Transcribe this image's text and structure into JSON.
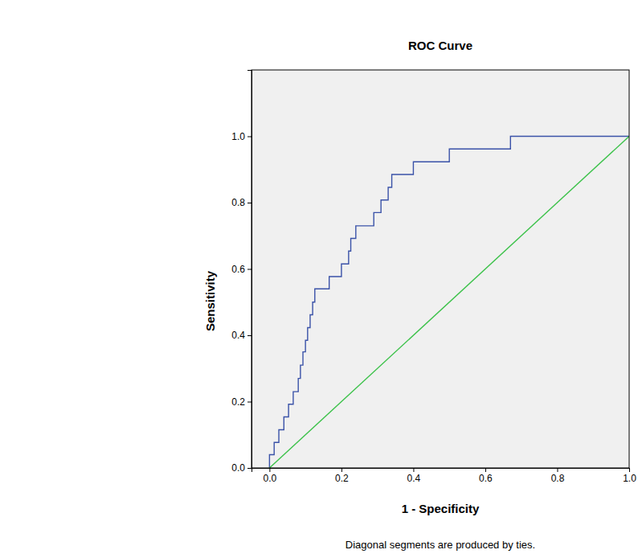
{
  "chart_data": {
    "type": "line",
    "title": "ROC Curve",
    "x_label": "1 - Specificity",
    "y_label": "Sensitivity",
    "footnote": "Diagonal segments are produced by ties.",
    "xlim": [
      -0.05,
      1.0
    ],
    "ylim": [
      0.0,
      1.2
    ],
    "xticks": [
      {
        "value": 0,
        "label": "0.0"
      },
      {
        "value": 0.2,
        "label": "0.2"
      },
      {
        "value": 0.4,
        "label": "0.4"
      },
      {
        "value": 0.6,
        "label": "0.6"
      },
      {
        "value": 0.8,
        "label": "0.8"
      },
      {
        "value": 1,
        "label": "1.0"
      }
    ],
    "yticks": [
      {
        "value": 0,
        "label": "0.0"
      },
      {
        "value": 0.2,
        "label": "0.2"
      },
      {
        "value": 0.4,
        "label": "0.4"
      },
      {
        "value": 0.6,
        "label": "0.6"
      },
      {
        "value": 0.8,
        "label": "0.8"
      },
      {
        "value": 1,
        "label": "1.0"
      }
    ],
    "grid": false,
    "series": [
      {
        "color": "#3a52a8",
        "line_style": "solid",
        "x": [
          0.0,
          0.0,
          0.013,
          0.013,
          0.026,
          0.026,
          0.04,
          0.04,
          0.053,
          0.053,
          0.066,
          0.066,
          0.08,
          0.08,
          0.086,
          0.086,
          0.093,
          0.093,
          0.1,
          0.1,
          0.106,
          0.106,
          0.113,
          0.113,
          0.12,
          0.12,
          0.126,
          0.126,
          0.166,
          0.166,
          0.2,
          0.2,
          0.22,
          0.22,
          0.226,
          0.226,
          0.24,
          0.24,
          0.29,
          0.29,
          0.31,
          0.31,
          0.33,
          0.33,
          0.34,
          0.34,
          0.35,
          0.35,
          0.4,
          0.4,
          0.5,
          0.5,
          0.67,
          0.67,
          1.0
        ],
        "values": [
          0.0,
          0.04,
          0.04,
          0.077,
          0.077,
          0.115,
          0.115,
          0.154,
          0.154,
          0.192,
          0.192,
          0.23,
          0.23,
          0.27,
          0.27,
          0.31,
          0.31,
          0.35,
          0.35,
          0.385,
          0.385,
          0.423,
          0.423,
          0.462,
          0.462,
          0.5,
          0.5,
          0.54,
          0.54,
          0.577,
          0.577,
          0.615,
          0.615,
          0.654,
          0.654,
          0.692,
          0.692,
          0.73,
          0.73,
          0.77,
          0.77,
          0.808,
          0.808,
          0.846,
          0.846,
          0.885,
          0.885,
          0.885,
          0.885,
          0.923,
          0.923,
          0.962,
          0.962,
          1.0,
          1.0
        ]
      },
      {
        "color": "#3cc24a",
        "line_style": "solid",
        "x": [
          0.0,
          1.0
        ],
        "values": [
          0.0,
          1.0
        ]
      }
    ]
  }
}
